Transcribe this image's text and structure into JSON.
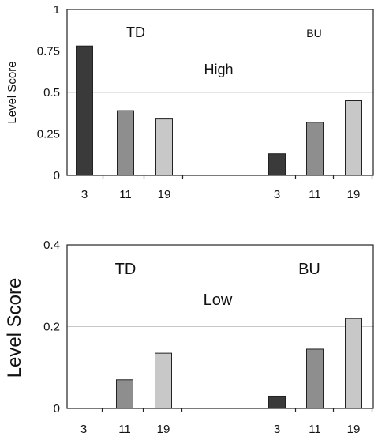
{
  "chart_data": [
    {
      "type": "bar",
      "ylabel": "Level Score",
      "ylim": [
        0,
        1
      ],
      "yticks": [
        "0",
        "0.25",
        "0.5",
        "0.75",
        "1"
      ],
      "grid": true,
      "annotations": {
        "left_group": "TD",
        "right_group": "BU",
        "condition": "High"
      },
      "groups": [
        {
          "name": "TD",
          "categories": [
            "3",
            "11",
            "19"
          ],
          "values": [
            0.78,
            0.39,
            0.34
          ]
        },
        {
          "name": "BU",
          "categories": [
            "3",
            "11",
            "19"
          ],
          "values": [
            0.13,
            0.32,
            0.45
          ]
        }
      ],
      "colors": [
        "#3a3a3a",
        "#8e8e8e",
        "#c8c8c8"
      ]
    },
    {
      "type": "bar",
      "ylabel": "Level Score",
      "ylim": [
        0,
        0.4
      ],
      "yticks": [
        "0",
        "0.2",
        "0.4"
      ],
      "grid": true,
      "annotations": {
        "left_group": "TD",
        "right_group": "BU",
        "condition": "Low"
      },
      "groups": [
        {
          "name": "TD",
          "categories": [
            "3",
            "11",
            "19"
          ],
          "values": [
            0.0,
            0.07,
            0.135
          ]
        },
        {
          "name": "BU",
          "categories": [
            "3",
            "11",
            "19"
          ],
          "values": [
            0.03,
            0.145,
            0.22
          ]
        }
      ],
      "colors": [
        "#3a3a3a",
        "#8e8e8e",
        "#c8c8c8"
      ]
    }
  ]
}
